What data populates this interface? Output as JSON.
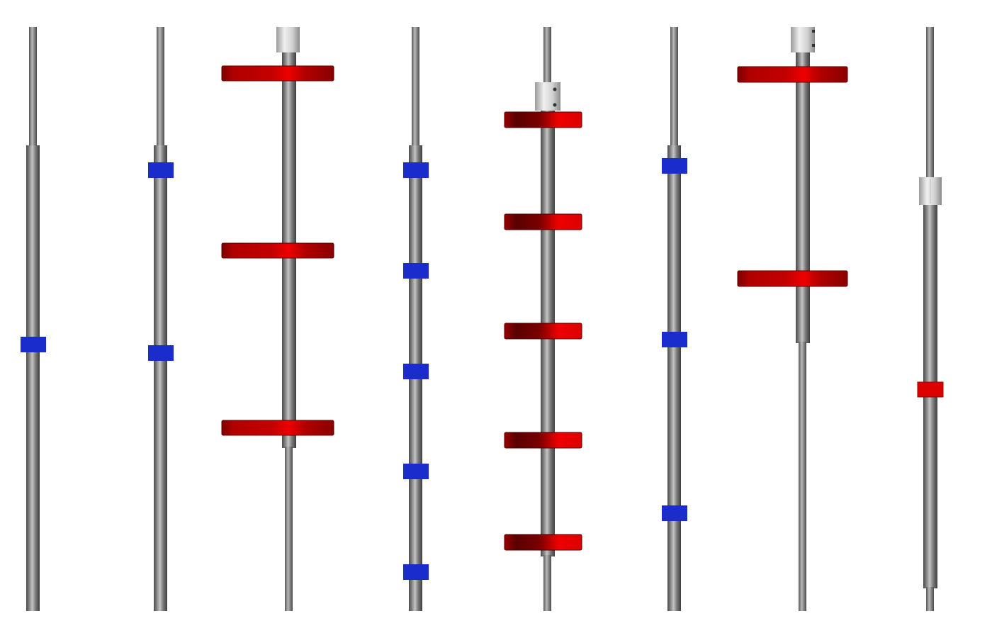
{
  "scene": {
    "background": "#ffffff",
    "colors": {
      "rod_dark": "#4a4a4a",
      "rod_mid": "#8a8a8a",
      "rod_light": "#c4c4c4",
      "blue_block": "#1a2ccc",
      "red_bar_dark": "#7a0000",
      "red_bar_mid": "#b00000",
      "red_bar_bright": "#ee0000",
      "collar_light": "#e8e8e8",
      "collar_dark": "#9a9a9a"
    },
    "rods": [
      {
        "name": "rod-1",
        "attachment": "blue-block",
        "count": 1,
        "collar": false
      },
      {
        "name": "rod-2",
        "attachment": "blue-block",
        "count": 2,
        "collar": false
      },
      {
        "name": "rod-3",
        "attachment": "red-wide-bar",
        "count": 3,
        "collar": true
      },
      {
        "name": "rod-4",
        "attachment": "blue-block",
        "count": 5,
        "collar": false
      },
      {
        "name": "rod-5",
        "attachment": "red-medium-bar",
        "count": 5,
        "collar": true
      },
      {
        "name": "rod-6",
        "attachment": "blue-block",
        "count": 3,
        "collar": false
      },
      {
        "name": "rod-7",
        "attachment": "red-wide-bar",
        "count": 2,
        "collar": true
      },
      {
        "name": "rod-8",
        "attachment": "red-small-block",
        "count": 1,
        "collar": true
      }
    ]
  }
}
